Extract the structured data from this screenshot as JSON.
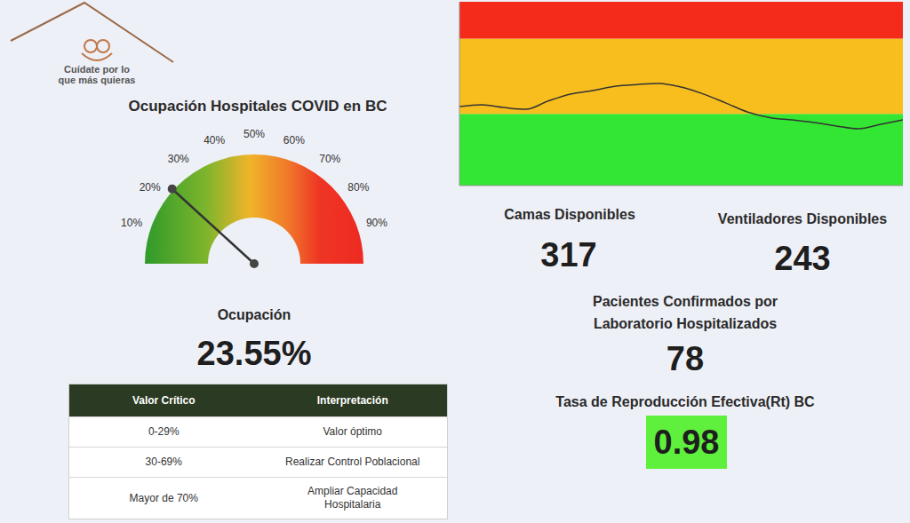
{
  "logo": {
    "text": "Cuídate por lo que más quieras"
  },
  "chart_data": [
    {
      "type": "gauge",
      "title": "Ocupación Hospitales COVID en BC",
      "value": 23.55,
      "value_title": "Ocupación",
      "value_label": "23.55%",
      "ylim": [
        0,
        100
      ],
      "yticks": [
        {
          "value": 10,
          "label": "10%"
        },
        {
          "value": 20,
          "label": "20%"
        },
        {
          "value": 30,
          "label": "30%"
        },
        {
          "value": 40,
          "label": "40%"
        },
        {
          "value": 50,
          "label": "50%"
        },
        {
          "value": 60,
          "label": "60%"
        },
        {
          "value": 70,
          "label": "70%"
        },
        {
          "value": 80,
          "label": "80%"
        },
        {
          "value": 90,
          "label": "90%"
        }
      ]
    },
    {
      "type": "line",
      "categories": [
        null,
        null,
        null,
        null,
        null,
        null,
        null,
        null,
        null,
        null,
        null,
        null,
        null,
        null,
        null,
        null,
        null,
        null,
        null,
        null,
        null
      ],
      "series": [
        {
          "color": "#333333",
          "values": [
            43,
            44,
            42.5,
            41.5,
            46,
            49.8,
            51.7,
            54,
            55,
            55.6,
            53.6,
            49.8,
            45,
            40,
            37,
            35.7,
            34.3,
            32.4,
            30.9,
            33.3,
            35.7
          ]
        }
      ],
      "ylim": [
        0,
        100
      ],
      "bands": [
        {
          "from": 0,
          "to": 39,
          "color": "#33e633"
        },
        {
          "from": 39,
          "to": 80,
          "color": "#f7be1e"
        },
        {
          "from": 80,
          "to": 100,
          "color": "#f42a1a"
        }
      ],
      "tick_labels": false
    }
  ],
  "table": {
    "header": [
      "Valor Crítico",
      "Interpretación"
    ],
    "rows": [
      [
        "0-29%",
        "Valor óptimo"
      ],
      [
        "30-69%",
        "Realizar Control Poblacional"
      ],
      [
        "Mayor de 70%",
        "Ampliar Capacidad Hospitalaria"
      ]
    ]
  },
  "stats": [
    {
      "label": "Camas Disponibles",
      "value": "317"
    },
    {
      "label": "Ventiladores Disponibles",
      "value": "243"
    },
    {
      "label": "Pacientes Confirmados por Laboratorio Hospitalizados",
      "value": "78"
    }
  ],
  "rt": {
    "label": "Tasa de Reproducción Efectiva(Rt) BC",
    "value": "0.98",
    "color": "#5ef03c"
  }
}
